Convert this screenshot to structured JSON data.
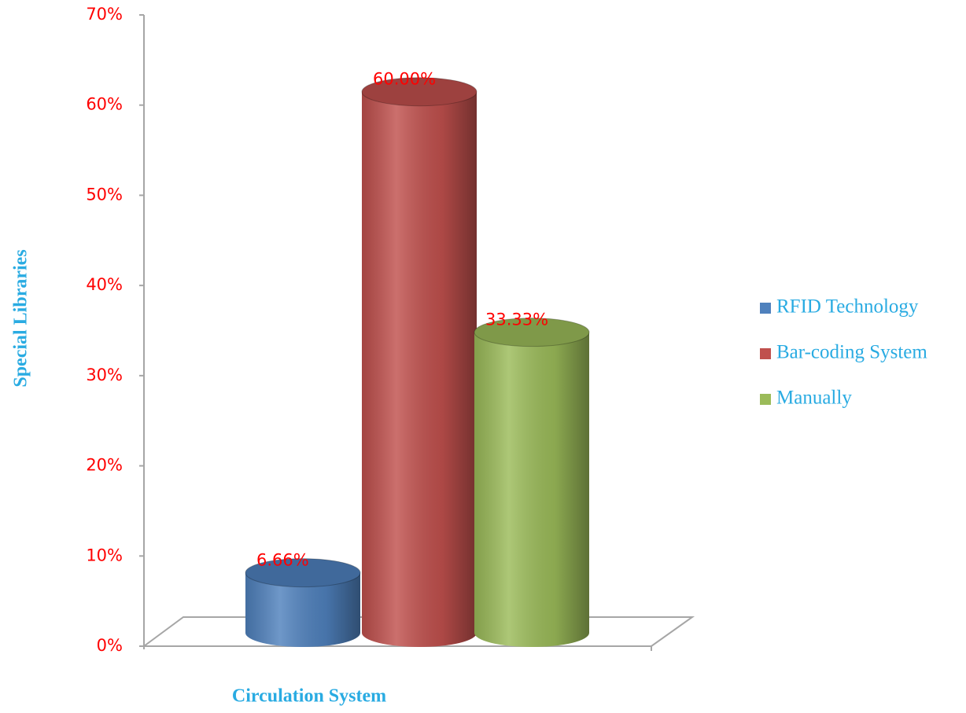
{
  "chart_data": {
    "type": "bar",
    "x_label": "Circulation System",
    "y_label": "Special Libraries",
    "series": [
      {
        "name": "RFID Technology",
        "color": "#4f81bd",
        "values": [
          6.66
        ],
        "value_labels": [
          "6.66%"
        ]
      },
      {
        "name": "Bar-coding System",
        "color": "#c0504d",
        "values": [
          60
        ],
        "value_labels": [
          "60.00%"
        ]
      },
      {
        "name": "Manually",
        "color": "#9bbb59",
        "values": [
          33.33
        ],
        "value_labels": [
          "33.33%"
        ]
      }
    ],
    "ylim": [
      0,
      70
    ],
    "yticks": [
      {
        "value": 0,
        "label": "0%"
      },
      {
        "value": 10,
        "label": "10%"
      },
      {
        "value": 20,
        "label": "20%"
      },
      {
        "value": 30,
        "label": "30%"
      },
      {
        "value": 40,
        "label": "40%"
      },
      {
        "value": 50,
        "label": "50%"
      },
      {
        "value": 60,
        "label": "60%"
      },
      {
        "value": 70,
        "label": "70%"
      }
    ],
    "legend": "right"
  }
}
